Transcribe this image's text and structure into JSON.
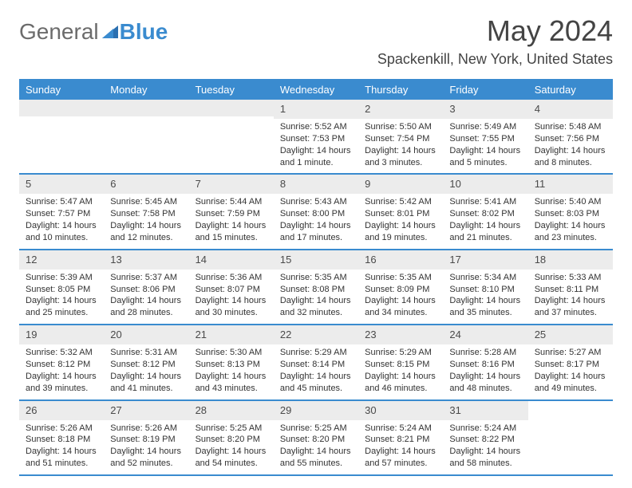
{
  "logo": {
    "text1": "General",
    "text2": "Blue"
  },
  "header": {
    "month_title": "May 2024",
    "location": "Spackenkill, New York, United States"
  },
  "style": {
    "accent": "#3a8bcf",
    "header_text": "#ffffff",
    "daynum_bg": "#ececec",
    "body_text": "#333333",
    "title_color": "#444444"
  },
  "weekdays": [
    "Sunday",
    "Monday",
    "Tuesday",
    "Wednesday",
    "Thursday",
    "Friday",
    "Saturday"
  ],
  "weeks": [
    [
      {
        "blank": true
      },
      {
        "blank": true
      },
      {
        "blank": true
      },
      {
        "n": "1",
        "sunrise": "5:52 AM",
        "sunset": "7:53 PM",
        "daylight": "14 hours and 1 minute."
      },
      {
        "n": "2",
        "sunrise": "5:50 AM",
        "sunset": "7:54 PM",
        "daylight": "14 hours and 3 minutes."
      },
      {
        "n": "3",
        "sunrise": "5:49 AM",
        "sunset": "7:55 PM",
        "daylight": "14 hours and 5 minutes."
      },
      {
        "n": "4",
        "sunrise": "5:48 AM",
        "sunset": "7:56 PM",
        "daylight": "14 hours and 8 minutes."
      }
    ],
    [
      {
        "n": "5",
        "sunrise": "5:47 AM",
        "sunset": "7:57 PM",
        "daylight": "14 hours and 10 minutes."
      },
      {
        "n": "6",
        "sunrise": "5:45 AM",
        "sunset": "7:58 PM",
        "daylight": "14 hours and 12 minutes."
      },
      {
        "n": "7",
        "sunrise": "5:44 AM",
        "sunset": "7:59 PM",
        "daylight": "14 hours and 15 minutes."
      },
      {
        "n": "8",
        "sunrise": "5:43 AM",
        "sunset": "8:00 PM",
        "daylight": "14 hours and 17 minutes."
      },
      {
        "n": "9",
        "sunrise": "5:42 AM",
        "sunset": "8:01 PM",
        "daylight": "14 hours and 19 minutes."
      },
      {
        "n": "10",
        "sunrise": "5:41 AM",
        "sunset": "8:02 PM",
        "daylight": "14 hours and 21 minutes."
      },
      {
        "n": "11",
        "sunrise": "5:40 AM",
        "sunset": "8:03 PM",
        "daylight": "14 hours and 23 minutes."
      }
    ],
    [
      {
        "n": "12",
        "sunrise": "5:39 AM",
        "sunset": "8:05 PM",
        "daylight": "14 hours and 25 minutes."
      },
      {
        "n": "13",
        "sunrise": "5:37 AM",
        "sunset": "8:06 PM",
        "daylight": "14 hours and 28 minutes."
      },
      {
        "n": "14",
        "sunrise": "5:36 AM",
        "sunset": "8:07 PM",
        "daylight": "14 hours and 30 minutes."
      },
      {
        "n": "15",
        "sunrise": "5:35 AM",
        "sunset": "8:08 PM",
        "daylight": "14 hours and 32 minutes."
      },
      {
        "n": "16",
        "sunrise": "5:35 AM",
        "sunset": "8:09 PM",
        "daylight": "14 hours and 34 minutes."
      },
      {
        "n": "17",
        "sunrise": "5:34 AM",
        "sunset": "8:10 PM",
        "daylight": "14 hours and 35 minutes."
      },
      {
        "n": "18",
        "sunrise": "5:33 AM",
        "sunset": "8:11 PM",
        "daylight": "14 hours and 37 minutes."
      }
    ],
    [
      {
        "n": "19",
        "sunrise": "5:32 AM",
        "sunset": "8:12 PM",
        "daylight": "14 hours and 39 minutes."
      },
      {
        "n": "20",
        "sunrise": "5:31 AM",
        "sunset": "8:12 PM",
        "daylight": "14 hours and 41 minutes."
      },
      {
        "n": "21",
        "sunrise": "5:30 AM",
        "sunset": "8:13 PM",
        "daylight": "14 hours and 43 minutes."
      },
      {
        "n": "22",
        "sunrise": "5:29 AM",
        "sunset": "8:14 PM",
        "daylight": "14 hours and 45 minutes."
      },
      {
        "n": "23",
        "sunrise": "5:29 AM",
        "sunset": "8:15 PM",
        "daylight": "14 hours and 46 minutes."
      },
      {
        "n": "24",
        "sunrise": "5:28 AM",
        "sunset": "8:16 PM",
        "daylight": "14 hours and 48 minutes."
      },
      {
        "n": "25",
        "sunrise": "5:27 AM",
        "sunset": "8:17 PM",
        "daylight": "14 hours and 49 minutes."
      }
    ],
    [
      {
        "n": "26",
        "sunrise": "5:26 AM",
        "sunset": "8:18 PM",
        "daylight": "14 hours and 51 minutes."
      },
      {
        "n": "27",
        "sunrise": "5:26 AM",
        "sunset": "8:19 PM",
        "daylight": "14 hours and 52 minutes."
      },
      {
        "n": "28",
        "sunrise": "5:25 AM",
        "sunset": "8:20 PM",
        "daylight": "14 hours and 54 minutes."
      },
      {
        "n": "29",
        "sunrise": "5:25 AM",
        "sunset": "8:20 PM",
        "daylight": "14 hours and 55 minutes."
      },
      {
        "n": "30",
        "sunrise": "5:24 AM",
        "sunset": "8:21 PM",
        "daylight": "14 hours and 57 minutes."
      },
      {
        "n": "31",
        "sunrise": "5:24 AM",
        "sunset": "8:22 PM",
        "daylight": "14 hours and 58 minutes."
      },
      {
        "blank": true,
        "trailing": true
      }
    ]
  ]
}
